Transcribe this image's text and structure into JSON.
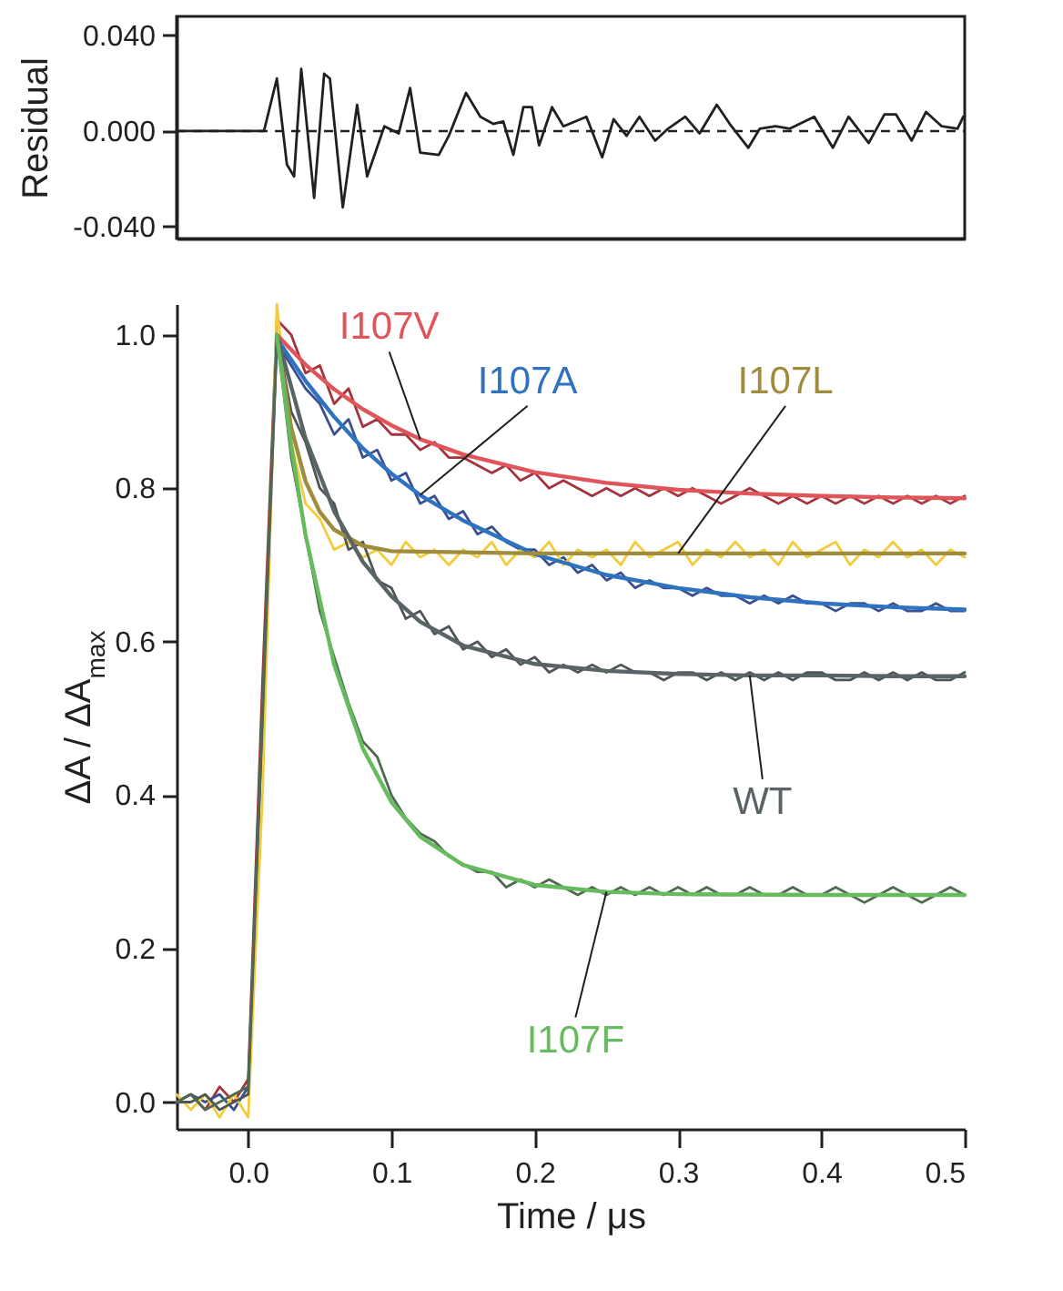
{
  "chart_data": [
    {
      "type": "line",
      "ylabel": "Residual",
      "xlim": [
        -0.05,
        0.5
      ],
      "ylim": [
        -0.045,
        0.048
      ],
      "yticks": [
        {
          "value": -0.04,
          "label": "-0.040"
        },
        {
          "value": 0,
          "label": "0.000"
        },
        {
          "value": 0.04,
          "label": "0.040"
        }
      ],
      "tick_labels": "y",
      "ref_lines": [
        {
          "axis": "y",
          "value": 0,
          "line_style": "dashed"
        }
      ],
      "series": [
        {
          "color": "#231f20",
          "x": [
            -0.05,
            0.011,
            0.02,
            0.027,
            0.032,
            0.037,
            0.046,
            0.053,
            0.057,
            0.066,
            0.076,
            0.083,
            0.095,
            0.105,
            0.113,
            0.12,
            0.133,
            0.14,
            0.152,
            0.162,
            0.171,
            0.178,
            0.185,
            0.192,
            0.198,
            0.203,
            0.212,
            0.22,
            0.236,
            0.247,
            0.255,
            0.264,
            0.273,
            0.284,
            0.293,
            0.305,
            0.315,
            0.327,
            0.336,
            0.349,
            0.357,
            0.368,
            0.378,
            0.395,
            0.408,
            0.419,
            0.433,
            0.444,
            0.452,
            0.463,
            0.473,
            0.484,
            0.495,
            0.499
          ],
          "values": [
            0,
            0,
            0.022,
            -0.014,
            -0.019,
            0.026,
            -0.028,
            0.024,
            0.022,
            -0.032,
            0.011,
            -0.019,
            0.002,
            -0.001,
            0.018,
            -0.009,
            -0.01,
            -0.002,
            0.016,
            0.006,
            0.003,
            0.004,
            -0.01,
            0.01,
            0.01,
            -0.006,
            0.01,
            0.002,
            0.006,
            -0.011,
            0.005,
            -0.002,
            0.006,
            -0.004,
            0.001,
            0.006,
            -0.001,
            0.011,
            0.003,
            -0.007,
            0.001,
            0.002,
            0.001,
            0.006,
            -0.007,
            0.006,
            -0.005,
            0.007,
            0.007,
            -0.004,
            0.008,
            0.002,
            0.001,
            0.006
          ]
        }
      ]
    },
    {
      "type": "line",
      "xlabel": "Time / μs",
      "ylabel": "ΔA / ΔA$_{max}$",
      "xlim": [
        -0.05,
        0.5
      ],
      "ylim": [
        -0.035,
        1.04
      ],
      "xticks": [
        {
          "value": 0,
          "label": "0.0"
        },
        {
          "value": 0.1,
          "label": "0.1"
        },
        {
          "value": 0.2,
          "label": "0.2"
        },
        {
          "value": 0.3,
          "label": "0.3"
        },
        {
          "value": 0.4,
          "label": "0.4"
        },
        {
          "value": 0.5,
          "label": "0.5"
        }
      ],
      "yticks": [
        {
          "value": 0,
          "label": "0.0"
        },
        {
          "value": 0.2,
          "label": "0.2"
        },
        {
          "value": 0.4,
          "label": "0.4"
        },
        {
          "value": 0.6,
          "label": "0.6"
        },
        {
          "value": 0.8,
          "label": "0.8"
        },
        {
          "value": 1,
          "label": "1.0"
        }
      ],
      "x": [
        -0.05,
        -0.04,
        -0.03,
        -0.02,
        -0.01,
        0,
        0.01,
        0.02,
        0.03,
        0.04,
        0.05,
        0.06,
        0.07,
        0.08,
        0.09,
        0.1,
        0.11,
        0.12,
        0.13,
        0.14,
        0.15,
        0.16,
        0.17,
        0.18,
        0.19,
        0.2,
        0.21,
        0.22,
        0.23,
        0.24,
        0.25,
        0.26,
        0.27,
        0.28,
        0.29,
        0.3,
        0.31,
        0.32,
        0.33,
        0.34,
        0.35,
        0.36,
        0.37,
        0.38,
        0.39,
        0.4,
        0.41,
        0.42,
        0.43,
        0.44,
        0.45,
        0.46,
        0.47,
        0.48,
        0.49,
        0.5
      ],
      "series": [
        {
          "color": "#a3343e",
          "values": [
            0,
            0.01,
            -0.01,
            0.02,
            0,
            0.03,
            0.55,
            1.02,
            1,
            0.95,
            0.96,
            0.91,
            0.93,
            0.88,
            0.89,
            0.87,
            0.87,
            0.85,
            0.86,
            0.84,
            0.84,
            0.83,
            0.82,
            0.83,
            0.81,
            0.82,
            0.8,
            0.81,
            0.8,
            0.79,
            0.8,
            0.79,
            0.8,
            0.79,
            0.8,
            0.79,
            0.8,
            0.79,
            0.78,
            0.79,
            0.8,
            0.79,
            0.78,
            0.79,
            0.78,
            0.79,
            0.78,
            0.79,
            0.78,
            0.79,
            0.78,
            0.79,
            0.78,
            0.79,
            0.78,
            0.79
          ]
        },
        {
          "color": "#3a4f8f",
          "values": [
            0,
            0.01,
            0,
            0.01,
            -0.01,
            0.02,
            0.5,
            0.99,
            0.96,
            0.93,
            0.91,
            0.87,
            0.89,
            0.84,
            0.85,
            0.81,
            0.82,
            0.78,
            0.79,
            0.76,
            0.77,
            0.74,
            0.75,
            0.73,
            0.72,
            0.72,
            0.7,
            0.71,
            0.69,
            0.7,
            0.68,
            0.69,
            0.67,
            0.68,
            0.67,
            0.67,
            0.66,
            0.67,
            0.66,
            0.66,
            0.65,
            0.66,
            0.65,
            0.66,
            0.65,
            0.65,
            0.64,
            0.65,
            0.65,
            0.64,
            0.65,
            0.64,
            0.64,
            0.65,
            0.64,
            0.64
          ]
        },
        {
          "color": "#f2cc3c",
          "values": [
            0.01,
            -0.01,
            0.01,
            -0.02,
            0.01,
            -0.02,
            0.4,
            1.04,
            0.86,
            0.78,
            0.76,
            0.72,
            0.73,
            0.71,
            0.72,
            0.7,
            0.73,
            0.71,
            0.72,
            0.7,
            0.72,
            0.71,
            0.73,
            0.7,
            0.72,
            0.71,
            0.73,
            0.7,
            0.72,
            0.71,
            0.72,
            0.7,
            0.73,
            0.71,
            0.72,
            0.73,
            0.7,
            0.72,
            0.71,
            0.73,
            0.71,
            0.72,
            0.7,
            0.73,
            0.71,
            0.72,
            0.73,
            0.7,
            0.72,
            0.71,
            0.73,
            0.71,
            0.72,
            0.7,
            0.72,
            0.71
          ]
        },
        {
          "color": "#4d5556",
          "values": [
            0,
            0,
            0.01,
            -0.01,
            0,
            0.01,
            0.5,
            1,
            0.9,
            0.86,
            0.8,
            0.78,
            0.72,
            0.73,
            0.68,
            0.67,
            0.63,
            0.64,
            0.61,
            0.62,
            0.59,
            0.6,
            0.58,
            0.59,
            0.57,
            0.58,
            0.56,
            0.57,
            0.56,
            0.57,
            0.56,
            0.57,
            0.56,
            0.56,
            0.55,
            0.56,
            0.56,
            0.55,
            0.56,
            0.55,
            0.56,
            0.55,
            0.56,
            0.55,
            0.56,
            0.56,
            0.55,
            0.55,
            0.56,
            0.55,
            0.56,
            0.55,
            0.56,
            0.55,
            0.55,
            0.56
          ]
        },
        {
          "color": "#4f6a50",
          "values": [
            0,
            0.01,
            -0.01,
            0,
            0.01,
            0.02,
            0.52,
            1,
            0.84,
            0.74,
            0.64,
            0.58,
            0.52,
            0.47,
            0.45,
            0.4,
            0.37,
            0.35,
            0.34,
            0.32,
            0.31,
            0.3,
            0.3,
            0.28,
            0.29,
            0.28,
            0.29,
            0.28,
            0.27,
            0.28,
            0.27,
            0.28,
            0.27,
            0.28,
            0.27,
            0.28,
            0.27,
            0.28,
            0.27,
            0.27,
            0.28,
            0.27,
            0.27,
            0.28,
            0.27,
            0.27,
            0.28,
            0.27,
            0.26,
            0.27,
            0.28,
            0.27,
            0.26,
            0.27,
            0.28,
            0.27
          ]
        },
        {
          "name": "I107V",
          "color": "#e0555a",
          "x": [
            0.02,
            0.04,
            0.06,
            0.08,
            0.1,
            0.12,
            0.15,
            0.2,
            0.25,
            0.3,
            0.35,
            0.4,
            0.45,
            0.5
          ],
          "values": [
            1,
            0.961,
            0.929,
            0.903,
            0.882,
            0.864,
            0.844,
            0.821,
            0.807,
            0.798,
            0.793,
            0.79,
            0.788,
            0.787
          ]
        },
        {
          "name": "I107A",
          "color": "#2f73c0",
          "x": [
            0.02,
            0.04,
            0.06,
            0.08,
            0.1,
            0.12,
            0.15,
            0.2,
            0.25,
            0.3,
            0.35,
            0.4,
            0.45,
            0.5
          ],
          "values": [
            0.995,
            0.94,
            0.893,
            0.852,
            0.819,
            0.791,
            0.758,
            0.714,
            0.687,
            0.67,
            0.658,
            0.65,
            0.645,
            0.642
          ]
        },
        {
          "name": "I107L",
          "color": "#a08c3c",
          "x": [
            0.02,
            0.03,
            0.04,
            0.05,
            0.06,
            0.08,
            0.1,
            0.2,
            0.3,
            0.4,
            0.5
          ],
          "values": [
            1,
            0.879,
            0.809,
            0.769,
            0.746,
            0.725,
            0.718,
            0.715,
            0.715,
            0.715,
            0.715
          ]
        },
        {
          "name": "WT",
          "color": "#5a6466",
          "x": [
            0.02,
            0.04,
            0.06,
            0.08,
            0.1,
            0.12,
            0.15,
            0.2,
            0.25,
            0.3,
            0.35,
            0.4,
            0.45,
            0.5
          ],
          "values": [
            1,
            0.865,
            0.77,
            0.704,
            0.659,
            0.626,
            0.595,
            0.571,
            0.562,
            0.558,
            0.556,
            0.556,
            0.555,
            0.555
          ]
        },
        {
          "name": "I107F",
          "color": "#66bb5e",
          "x": [
            0.02,
            0.03,
            0.04,
            0.06,
            0.08,
            0.1,
            0.12,
            0.15,
            0.2,
            0.25,
            0.3,
            0.4,
            0.5
          ],
          "values": [
            1,
            0.855,
            0.739,
            0.57,
            0.461,
            0.391,
            0.346,
            0.309,
            0.283,
            0.274,
            0.271,
            0.27,
            0.27
          ]
        }
      ]
    }
  ]
}
